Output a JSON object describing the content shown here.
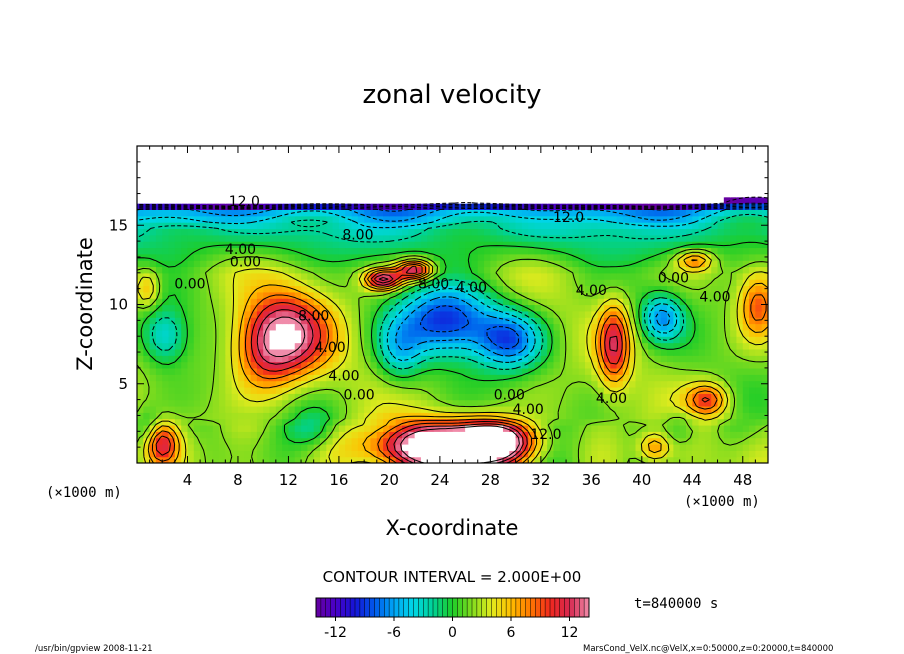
{
  "chart_data": {
    "type": "heatmap",
    "title": "zonal velocity",
    "xlabel": "X-coordinate",
    "ylabel": "Z-coordinate",
    "x_unit": "(×1000 m)",
    "y_unit": "(×1000 m)",
    "xlim": [
      0,
      50
    ],
    "ylim": [
      0,
      20
    ],
    "x_ticks": [
      "4",
      "8",
      "12",
      "16",
      "20",
      "24",
      "28",
      "32",
      "36",
      "40",
      "44",
      "48"
    ],
    "y_ticks": [
      "5",
      "10",
      "15"
    ],
    "contour_interval_label": "CONTOUR INTERVAL = 2.000E+00",
    "time_label": "t=840000 s",
    "colorbar": {
      "range": [
        -14,
        14
      ],
      "ticks": [
        "-12",
        "-6",
        "0",
        "6",
        "12"
      ]
    },
    "contour_labels": [
      {
        "text": "12.0",
        "x": 8.5,
        "y": 16.2
      },
      {
        "text": "8.00",
        "x": 17.5,
        "y": 14.1
      },
      {
        "text": "4.00",
        "x": 8.2,
        "y": 13.2
      },
      {
        "text": "0.00",
        "x": 8.6,
        "y": 12.4
      },
      {
        "text": "0.00",
        "x": 4.2,
        "y": 11.0
      },
      {
        "text": "12.0",
        "x": 34.2,
        "y": 15.2
      },
      {
        "text": "8.00",
        "x": 23.5,
        "y": 11.0
      },
      {
        "text": "4.00",
        "x": 26.5,
        "y": 10.8
      },
      {
        "text": "4.00",
        "x": 36.0,
        "y": 10.6
      },
      {
        "text": "0.00",
        "x": 42.5,
        "y": 11.4
      },
      {
        "text": "4.00",
        "x": 45.8,
        "y": 10.2
      },
      {
        "text": "4.00",
        "x": 15.3,
        "y": 7.0
      },
      {
        "text": "4.00",
        "x": 16.4,
        "y": 5.2
      },
      {
        "text": "0.00",
        "x": 17.6,
        "y": 4.0
      },
      {
        "text": "0.00",
        "x": 29.5,
        "y": 4.0
      },
      {
        "text": "4.00",
        "x": 31.0,
        "y": 3.1
      },
      {
        "text": "12.0",
        "x": 32.4,
        "y": 1.5
      },
      {
        "text": "4.00",
        "x": 37.6,
        "y": 3.8
      },
      {
        "text": "8.00",
        "x": 14.0,
        "y": 9.0
      }
    ],
    "features": [
      {
        "value": 11,
        "x": 12.0,
        "y": 8.2,
        "sx": 3.2,
        "sy": 2.6
      },
      {
        "value": 6,
        "x": 10.0,
        "y": 7.0,
        "sx": 2.6,
        "sy": 2.6
      },
      {
        "value": 17,
        "x": 24.0,
        "y": 1.0,
        "sx": 5.5,
        "sy": 1.5
      },
      {
        "value": 14,
        "x": 28.0,
        "y": 1.4,
        "sx": 3.0,
        "sy": 1.2
      },
      {
        "value": 8,
        "x": 2.0,
        "y": 1.2,
        "sx": 1.2,
        "sy": 1.2
      },
      {
        "value": 9,
        "x": 37.8,
        "y": 7.5,
        "sx": 1.2,
        "sy": 2.6
      },
      {
        "value": 8,
        "x": 45.2,
        "y": 4.0,
        "sx": 1.6,
        "sy": 1.0
      },
      {
        "value": 6,
        "x": 41.0,
        "y": 1.0,
        "sx": 1.2,
        "sy": 0.9
      },
      {
        "value": 7,
        "x": 49.2,
        "y": 10.0,
        "sx": 1.5,
        "sy": 2.0
      },
      {
        "value": 5,
        "x": 0.8,
        "y": 11.0,
        "sx": 1.0,
        "sy": 1.2
      },
      {
        "value": 13,
        "x": 19.5,
        "y": 11.6,
        "sx": 1.4,
        "sy": 0.6
      },
      {
        "value": 13,
        "x": 22.0,
        "y": 12.2,
        "sx": 1.4,
        "sy": 0.6
      },
      {
        "value": 7,
        "x": 44.2,
        "y": 12.8,
        "sx": 1.4,
        "sy": 0.6
      },
      {
        "value": -11,
        "x": 24.5,
        "y": 9.0,
        "sx": 3.8,
        "sy": 2.2
      },
      {
        "value": -9,
        "x": 29.5,
        "y": 7.8,
        "sx": 2.6,
        "sy": 1.8
      },
      {
        "value": -5,
        "x": 20.8,
        "y": 7.0,
        "sx": 1.8,
        "sy": 2.0
      },
      {
        "value": -6,
        "x": 2.2,
        "y": 8.0,
        "sx": 1.8,
        "sy": 1.8
      },
      {
        "value": -8,
        "x": 41.6,
        "y": 9.2,
        "sx": 1.6,
        "sy": 1.4
      },
      {
        "value": -3,
        "x": 0.8,
        "y": 2.2,
        "sx": 1.0,
        "sy": 1.2
      },
      {
        "value": -3,
        "x": 14.0,
        "y": 2.2,
        "sx": 1.8,
        "sy": 1.2
      },
      {
        "value": -3,
        "x": 43.0,
        "y": 2.2,
        "sx": 1.5,
        "sy": 1.0
      },
      {
        "value": -10,
        "x": 14.0,
        "y": 19.2,
        "sx": 1.6,
        "sy": 0.6
      },
      {
        "value": -10,
        "x": 25.0,
        "y": 19.5,
        "sx": 1.2,
        "sy": 0.8
      },
      {
        "value": -11,
        "x": 34.0,
        "y": 19.0,
        "sx": 2.0,
        "sy": 0.7
      }
    ]
  },
  "footer": {
    "left_note": "/usr/bin/gpview   2008-11-21",
    "right_note": "MarsCond_VelX.nc@VelX,x=0:50000,z=0:20000,t=840000"
  }
}
